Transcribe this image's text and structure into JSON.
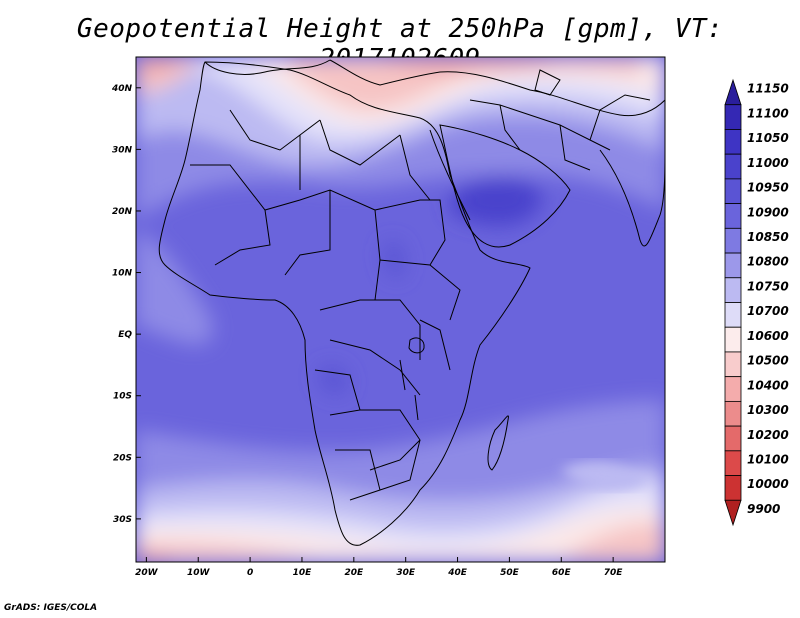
{
  "title": "Geopotential Height at 250hPa [gpm], VT: 2017102609",
  "credit": "GrADS: IGES/COLA",
  "map": {
    "lon_range": [
      -22,
      80
    ],
    "lat_range": [
      -37,
      45
    ],
    "lon_ticks": [
      {
        "value": -20,
        "label": "20W"
      },
      {
        "value": -10,
        "label": "10W"
      },
      {
        "value": 0,
        "label": "0"
      },
      {
        "value": 10,
        "label": "10E"
      },
      {
        "value": 20,
        "label": "20E"
      },
      {
        "value": 30,
        "label": "30E"
      },
      {
        "value": 40,
        "label": "40E"
      },
      {
        "value": 50,
        "label": "50E"
      },
      {
        "value": 60,
        "label": "60E"
      },
      {
        "value": 70,
        "label": "70E"
      }
    ],
    "lat_ticks": [
      {
        "value": 40,
        "label": "40N"
      },
      {
        "value": 30,
        "label": "30N"
      },
      {
        "value": 20,
        "label": "20N"
      },
      {
        "value": 10,
        "label": "10N"
      },
      {
        "value": 0,
        "label": "EQ"
      },
      {
        "value": -10,
        "label": "10S"
      },
      {
        "value": -20,
        "label": "20S"
      },
      {
        "value": -30,
        "label": "30S"
      }
    ]
  },
  "colorbar": {
    "levels": [
      "11150",
      "11100",
      "11050",
      "11000",
      "10950",
      "10900",
      "10850",
      "10800",
      "10750",
      "10700",
      "10600",
      "10500",
      "10400",
      "10300",
      "10200",
      "10100",
      "10000",
      "9900"
    ],
    "colors": [
      "#2a1e9c",
      "#3428b4",
      "#3e34c4",
      "#4a42cc",
      "#5a54d4",
      "#6a64dc",
      "#7e7ae2",
      "#9c98ea",
      "#bcbaf2",
      "#dedcf8",
      "#fcecec",
      "#f8cccc",
      "#f4acac",
      "#ec8c8c",
      "#e46a6a",
      "#dc4a4a",
      "#cc3232",
      "#b02020"
    ]
  }
}
